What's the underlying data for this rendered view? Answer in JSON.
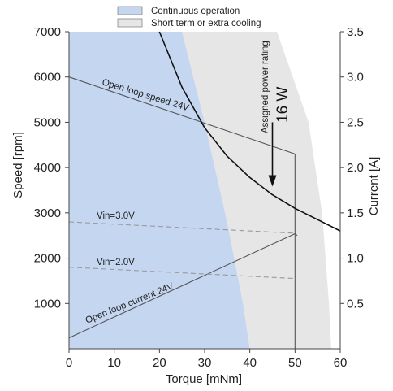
{
  "chart_data": {
    "type": "line",
    "title": "",
    "xlabel": "Torque [mNm]",
    "ylabel": "Speed [rpm]",
    "y2label": "Current [A]",
    "xlim": [
      0,
      60
    ],
    "ylim": [
      0,
      7000
    ],
    "y2lim": [
      0,
      3.5
    ],
    "xticks": [
      "0",
      "10",
      "20",
      "30",
      "40",
      "50",
      "60"
    ],
    "yticks": [
      "1000",
      "2000",
      "3000",
      "4000",
      "5000",
      "6000",
      "7000"
    ],
    "y2ticks": [
      "0.5",
      "1.0",
      "1.5",
      "2.0",
      "2.5",
      "3.0",
      "3.5"
    ],
    "grid": false,
    "legend": {
      "placement": "top",
      "entries": [
        {
          "label": "Continuous operation",
          "color": "#c5d6f0"
        },
        {
          "label": "Short term or extra cooling",
          "color": "#e6e6e6"
        }
      ]
    },
    "regions": [
      {
        "name": "Continuous operation",
        "color": "#c5d6f0",
        "boundary": [
          [
            0,
            7000
          ],
          [
            25,
            7000
          ],
          [
            30,
            5000
          ],
          [
            35,
            2800
          ],
          [
            38.5,
            1000
          ],
          [
            40,
            0
          ],
          [
            0,
            0
          ]
        ]
      },
      {
        "name": "Short term or extra cooling",
        "color": "#e6e6e6",
        "boundary": [
          [
            25,
            7000
          ],
          [
            46,
            7000
          ],
          [
            53,
            5000
          ],
          [
            56,
            3000
          ],
          [
            57.5,
            1000
          ],
          [
            58,
            0
          ],
          [
            40,
            0
          ],
          [
            38.5,
            1000
          ],
          [
            35,
            2800
          ],
          [
            30,
            5000
          ]
        ]
      }
    ],
    "series": [
      {
        "name": "Open loop speed  24V",
        "color": "#555555",
        "dash": false,
        "x": [
          0,
          50,
          50,
          50
        ],
        "y": [
          6000,
          4300,
          4200,
          0
        ]
      },
      {
        "name": "Open loop current  24V",
        "color": "#555555",
        "dash": false,
        "axis": "right",
        "x": [
          0,
          50,
          50.5
        ],
        "y": [
          0.12,
          1.27,
          1.25
        ]
      },
      {
        "name": "Vin=3.0V",
        "color": "#999999",
        "dash": true,
        "x": [
          0,
          50
        ],
        "y": [
          2800,
          2550
        ]
      },
      {
        "name": "Vin=2.0V",
        "color": "#999999",
        "dash": true,
        "x": [
          0,
          50
        ],
        "y": [
          1800,
          1550
        ]
      },
      {
        "name": "",
        "color": "#111111",
        "dash": false,
        "width": 1.6,
        "x": [
          20,
          25,
          30,
          35,
          40,
          45,
          50,
          55,
          60
        ],
        "y": [
          7000,
          5770,
          4880,
          4250,
          3780,
          3400,
          3100,
          2850,
          2600
        ]
      }
    ],
    "annotations": {
      "speed_label": "Open loop speed  24V",
      "current_label": "Open loop current  24V",
      "vin3_label": "Vin=3.0V",
      "vin2_label": "Vin=2.0V",
      "rating_label": "Assigned power rating",
      "power_value": "16 W"
    },
    "arrow": {
      "from": [
        45,
        5000
      ],
      "to": [
        45,
        3580
      ]
    }
  }
}
